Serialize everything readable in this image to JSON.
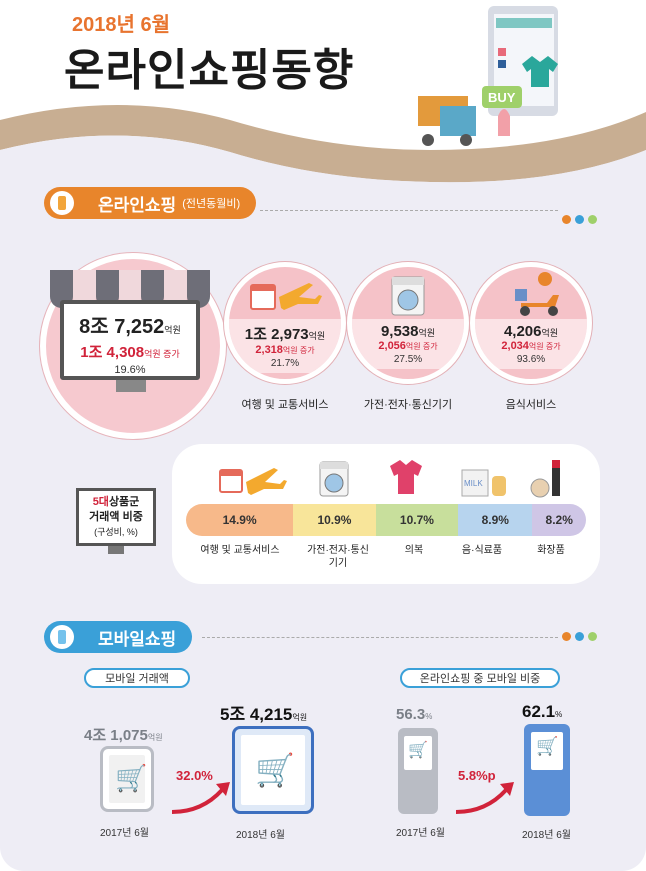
{
  "header": {
    "date": "2018년 6월",
    "title": "온라인쇼핑동향"
  },
  "online_section": {
    "title": "온라인쇼핑",
    "subtitle": "(전년동월비)",
    "total": {
      "amount": "8조 7,252",
      "amount_unit": "억원",
      "increase": "1조 4,308",
      "increase_unit": "억원 증가",
      "rate": "19.6%"
    },
    "categories": [
      {
        "name": "여행 및 교통서비스",
        "amount": "1조 2,973",
        "unit": "억원",
        "increase": "2,318",
        "increase_unit": "억원 증가",
        "rate": "21.7%",
        "icon": "calendar-airplane-icon"
      },
      {
        "name": "가전·전자·통신기기",
        "amount": "9,538",
        "unit": "억원",
        "increase": "2,056",
        "increase_unit": "억원 증가",
        "rate": "27.5%",
        "icon": "washing-machine-icon"
      },
      {
        "name": "음식서비스",
        "amount": "4,206",
        "unit": "억원",
        "increase": "2,034",
        "increase_unit": "억원 증가",
        "rate": "93.6%",
        "icon": "delivery-scooter-icon"
      }
    ]
  },
  "share_section": {
    "label_red": "5대",
    "label_rest": "상품군",
    "label_line2": "거래액 비중",
    "label_line3": "(구성비, %)",
    "items": [
      {
        "name": "여행 및 교통서비스",
        "value": 14.9,
        "display": "14.9%",
        "color": "#f7b98a",
        "icon": "calendar-airplane-icon"
      },
      {
        "name": "가전·전자·통신기기",
        "value": 10.9,
        "display": "10.9%",
        "color": "#f8e59a",
        "icon": "washing-machine-icon"
      },
      {
        "name": "의복",
        "value": 10.7,
        "display": "10.7%",
        "color": "#c8df9c",
        "icon": "tshirt-icon"
      },
      {
        "name": "음·식료품",
        "value": 8.9,
        "display": "8.9%",
        "color": "#b7d4ee",
        "icon": "milk-carton-icon"
      },
      {
        "name": "화장품",
        "value": 8.2,
        "display": "8.2%",
        "color": "#cfc6e6",
        "icon": "cosmetics-icon"
      }
    ]
  },
  "mobile_section": {
    "title": "모바일쇼핑",
    "transaction": {
      "tag": "모바일 거래액",
      "prev_value": "4조 1,075",
      "prev_unit": "억원",
      "prev_year": "2017년 6월",
      "growth": "32.0%",
      "curr_value": "5조 4,215",
      "curr_unit": "억원",
      "curr_year": "2018년 6월"
    },
    "share": {
      "tag": "온라인쇼핑 중 모바일 비중",
      "prev_value": "56.3",
      "prev_unit": "%",
      "prev_year": "2017년 6월",
      "growth": "5.8%p",
      "curr_value": "62.1",
      "curr_unit": "%",
      "curr_year": "2018년 6월"
    }
  },
  "colors": {
    "orange": "#e8852b",
    "blue": "#3aa0d8",
    "red": "#d1233a",
    "pink": "#f5c2c8"
  }
}
